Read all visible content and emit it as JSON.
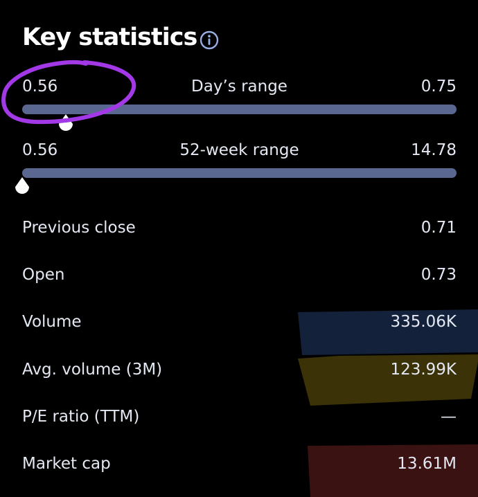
{
  "header": {
    "title": "Key statistics",
    "info_icon": "info-circle-icon"
  },
  "days_range": {
    "low": "0.56",
    "label": "Day’s range",
    "high": "0.75",
    "current_fraction": 0.1
  },
  "week52_range": {
    "low": "0.56",
    "label": "52-week range",
    "high": "14.78",
    "current_fraction": 0.0
  },
  "stats": [
    {
      "name": "Previous close",
      "value": "0.71"
    },
    {
      "name": "Open",
      "value": "0.73"
    },
    {
      "name": "Volume",
      "value": "335.06K",
      "highlight": "#14213a"
    },
    {
      "name": "Avg. volume (3M)",
      "value": "123.99K",
      "highlight": "#3b3208"
    },
    {
      "name": "P/E ratio (TTM)",
      "value": "—"
    },
    {
      "name": "Market cap",
      "value": "13.61M",
      "highlight": "#3a1212"
    }
  ],
  "colors": {
    "background": "#000000",
    "track": "#5a6891",
    "marker": "#ffffff",
    "annotation": "#a238e6",
    "info_icon": "#9aaee6"
  }
}
